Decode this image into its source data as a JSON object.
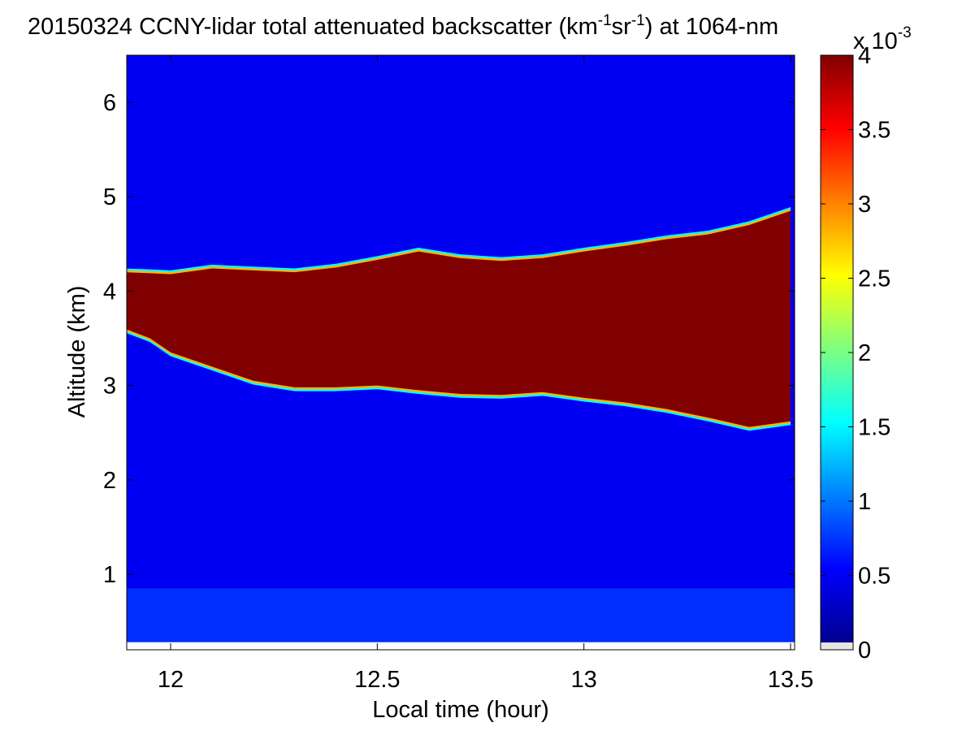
{
  "chart_data": {
    "type": "heatmap",
    "title": "20150324 CCNY-lidar total attenuated backscatter (km",
    "title_sup1": "-1",
    "title_mid": "sr",
    "title_sup2": "-1",
    "title_end": ") at 1064-nm",
    "xlabel": "Local time (hour)",
    "ylabel": "Altitude (km)",
    "xlim": [
      11.89,
      13.51
    ],
    "ylim": [
      0.15,
      6.5
    ],
    "xticks": [
      12,
      12.5,
      13,
      13.5
    ],
    "xtick_labels": [
      "12",
      "12.5",
      "13",
      "13.5"
    ],
    "yticks": [
      1,
      2,
      3,
      4,
      5,
      6
    ],
    "ytick_labels": [
      "1",
      "2",
      "3",
      "4",
      "5",
      "6"
    ],
    "colorbar": {
      "range": [
        0,
        4
      ],
      "ticks": [
        0,
        0.5,
        1,
        1.5,
        2,
        2.5,
        3,
        3.5,
        4
      ],
      "tick_labels": [
        "0",
        "0.5",
        "1",
        "1.5",
        "2",
        "2.5",
        "3",
        "3.5",
        "4"
      ],
      "multiplier_base": "x 10",
      "multiplier_exp": "-3",
      "colormap": "jet"
    },
    "cloud_layer": {
      "time": [
        11.89,
        11.95,
        12.0,
        12.1,
        12.2,
        12.3,
        12.4,
        12.5,
        12.6,
        12.7,
        12.8,
        12.9,
        13.0,
        13.1,
        13.2,
        13.3,
        13.4,
        13.5
      ],
      "base_km": [
        3.6,
        3.5,
        3.35,
        3.2,
        3.05,
        2.98,
        2.98,
        3.0,
        2.95,
        2.91,
        2.9,
        2.93,
        2.87,
        2.82,
        2.75,
        2.66,
        2.56,
        2.62
      ],
      "top_km": [
        4.2,
        4.19,
        4.18,
        4.24,
        4.22,
        4.2,
        4.25,
        4.33,
        4.42,
        4.35,
        4.32,
        4.35,
        4.42,
        4.48,
        4.55,
        4.6,
        4.7,
        4.85
      ],
      "value": 4,
      "edge_value": 1.5
    },
    "background_value": 0.45,
    "boundary_layer": {
      "top_km": 0.85,
      "value": 0.7
    },
    "grid": false
  }
}
